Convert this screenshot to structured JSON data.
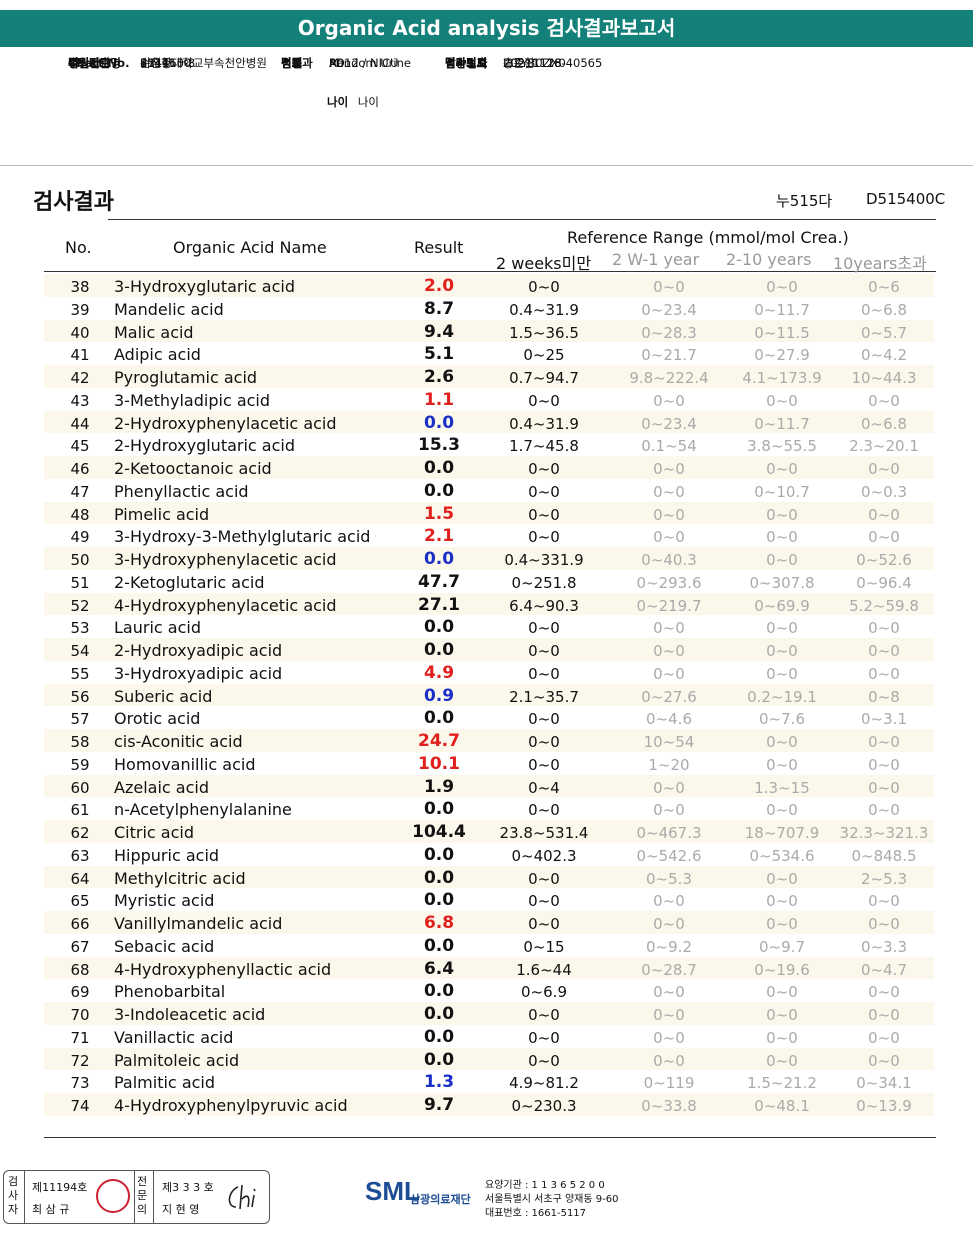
{
  "header": {
    "title": "Organic Acid analysis 검사결과보고서"
  },
  "info": {
    "col1": [
      {
        "k": "의뢰기관명",
        "v": "순천향대학교부속천안병원"
      },
      {
        "k": "병원코드",
        "v": "85416"
      },
      {
        "k": "수진자",
        "v": "이우주"
      },
      {
        "k": "Chart No.",
        "v": "1714550"
      },
      {
        "k": "주민번호",
        "v": "211110-3"
      }
    ],
    "col2": [
      {
        "k": "병동",
        "v": "A012 / NICU"
      },
      {
        "k": "진료과",
        "v": "PD"
      },
      {
        "k": "성별",
        "v": "M"
      },
      {
        "k": "검체",
        "v": "Random Urine"
      }
    ],
    "age_label": "나이",
    "age_value": "나이",
    "col3": [
      {
        "k": "담당의사",
        "v": "송준환"
      },
      {
        "k": "임상정보",
        "v": "I32Y30ZX0"
      },
      {
        "k": "접수번호",
        "v": "20211118-40565"
      },
      {
        "k": "검사의뢰",
        "v": "20211118"
      },
      {
        "k": "결과보고",
        "v": "20211126"
      }
    ]
  },
  "result_section": {
    "title": "검사결과",
    "code1": "누515다",
    "code2": "D515400C"
  },
  "table": {
    "headers": {
      "no": "No.",
      "name": "Organic Acid Name",
      "result": "Result",
      "ref": "Reference Range (mmol/mol Crea.)",
      "ref_cols": [
        "2 weeks미만",
        "2 W-1 year",
        "2-10 years",
        "10years초과"
      ]
    },
    "colors": {
      "high": "#e0201c",
      "low": "#1a2fc8",
      "normal": "#111111"
    },
    "rows": [
      {
        "no": "38",
        "name": "3-Hydroxyglutaric acid",
        "result": "2.0",
        "flag": "high",
        "r1": "0~0",
        "r2": "0~0",
        "r3": "0~0",
        "r4": "0~6"
      },
      {
        "no": "39",
        "name": "Mandelic acid",
        "result": "8.7",
        "flag": "normal",
        "r1": "0.4~31.9",
        "r2": "0~23.4",
        "r3": "0~11.7",
        "r4": "0~6.8"
      },
      {
        "no": "40",
        "name": "Malic acid",
        "result": "9.4",
        "flag": "normal",
        "r1": "1.5~36.5",
        "r2": "0~28.3",
        "r3": "0~11.5",
        "r4": "0~5.7"
      },
      {
        "no": "41",
        "name": "Adipic acid",
        "result": "5.1",
        "flag": "normal",
        "r1": "0~25",
        "r2": "0~21.7",
        "r3": "0~27.9",
        "r4": "0~4.2"
      },
      {
        "no": "42",
        "name": "Pyroglutamic acid",
        "result": "2.6",
        "flag": "normal",
        "r1": "0.7~94.7",
        "r2": "9.8~222.4",
        "r3": "4.1~173.9",
        "r4": "10~44.3"
      },
      {
        "no": "43",
        "name": "3-Methyladipic acid",
        "result": "1.1",
        "flag": "high",
        "r1": "0~0",
        "r2": "0~0",
        "r3": "0~0",
        "r4": "0~0"
      },
      {
        "no": "44",
        "name": "2-Hydroxyphenylacetic acid",
        "result": "0.0",
        "flag": "low",
        "r1": "0.4~31.9",
        "r2": "0~23.4",
        "r3": "0~11.7",
        "r4": "0~6.8"
      },
      {
        "no": "45",
        "name": "2-Hydroxyglutaric acid",
        "result": "15.3",
        "flag": "normal",
        "r1": "1.7~45.8",
        "r2": "0.1~54",
        "r3": "3.8~55.5",
        "r4": "2.3~20.1"
      },
      {
        "no": "46",
        "name": "2-Ketooctanoic acid",
        "result": "0.0",
        "flag": "normal",
        "r1": "0~0",
        "r2": "0~0",
        "r3": "0~0",
        "r4": "0~0"
      },
      {
        "no": "47",
        "name": "Phenyllactic acid",
        "result": "0.0",
        "flag": "normal",
        "r1": "0~0",
        "r2": "0~0",
        "r3": "0~10.7",
        "r4": "0~0.3"
      },
      {
        "no": "48",
        "name": "Pimelic acid",
        "result": "1.5",
        "flag": "high",
        "r1": "0~0",
        "r2": "0~0",
        "r3": "0~0",
        "r4": "0~0"
      },
      {
        "no": "49",
        "name": "3-Hydroxy-3-Methylglutaric acid",
        "result": "2.1",
        "flag": "high",
        "r1": "0~0",
        "r2": "0~0",
        "r3": "0~0",
        "r4": "0~0"
      },
      {
        "no": "50",
        "name": "3-Hydroxyphenylacetic acid",
        "result": "0.0",
        "flag": "low",
        "r1": "0.4~331.9",
        "r2": "0~40.3",
        "r3": "0~0",
        "r4": "0~52.6"
      },
      {
        "no": "51",
        "name": "2-Ketoglutaric acid",
        "result": "47.7",
        "flag": "normal",
        "r1": "0~251.8",
        "r2": "0~293.6",
        "r3": "0~307.8",
        "r4": "0~96.4"
      },
      {
        "no": "52",
        "name": "4-Hydroxyphenylacetic acid",
        "result": "27.1",
        "flag": "normal",
        "r1": "6.4~90.3",
        "r2": "0~219.7",
        "r3": "0~69.9",
        "r4": "5.2~59.8"
      },
      {
        "no": "53",
        "name": "Lauric acid",
        "result": "0.0",
        "flag": "normal",
        "r1": "0~0",
        "r2": "0~0",
        "r3": "0~0",
        "r4": "0~0"
      },
      {
        "no": "54",
        "name": "2-Hydroxyadipic acid",
        "result": "0.0",
        "flag": "normal",
        "r1": "0~0",
        "r2": "0~0",
        "r3": "0~0",
        "r4": "0~0"
      },
      {
        "no": "55",
        "name": "3-Hydroxyadipic acid",
        "result": "4.9",
        "flag": "high",
        "r1": "0~0",
        "r2": "0~0",
        "r3": "0~0",
        "r4": "0~0"
      },
      {
        "no": "56",
        "name": "Suberic acid",
        "result": "0.9",
        "flag": "low",
        "r1": "2.1~35.7",
        "r2": "0~27.6",
        "r3": "0.2~19.1",
        "r4": "0~8"
      },
      {
        "no": "57",
        "name": "Orotic acid",
        "result": "0.0",
        "flag": "normal",
        "r1": "0~0",
        "r2": "0~4.6",
        "r3": "0~7.6",
        "r4": "0~3.1"
      },
      {
        "no": "58",
        "name": "cis-Aconitic acid",
        "result": "24.7",
        "flag": "high",
        "r1": "0~0",
        "r2": "10~54",
        "r3": "0~0",
        "r4": "0~0"
      },
      {
        "no": "59",
        "name": "Homovanillic acid",
        "result": "10.1",
        "flag": "high",
        "r1": "0~0",
        "r2": "1~20",
        "r3": "0~0",
        "r4": "0~0"
      },
      {
        "no": "60",
        "name": "Azelaic acid",
        "result": "1.9",
        "flag": "normal",
        "r1": "0~4",
        "r2": "0~0",
        "r3": "1.3~15",
        "r4": "0~0"
      },
      {
        "no": "61",
        "name": "n-Acetylphenylalanine",
        "result": "0.0",
        "flag": "normal",
        "r1": "0~0",
        "r2": "0~0",
        "r3": "0~0",
        "r4": "0~0"
      },
      {
        "no": "62",
        "name": "Citric acid",
        "result": "104.4",
        "flag": "normal",
        "r1": "23.8~531.4",
        "r2": "0~467.3",
        "r3": "18~707.9",
        "r4": "32.3~321.3"
      },
      {
        "no": "63",
        "name": "Hippuric acid",
        "result": "0.0",
        "flag": "normal",
        "r1": "0~402.3",
        "r2": "0~542.6",
        "r3": "0~534.6",
        "r4": "0~848.5"
      },
      {
        "no": "64",
        "name": "Methylcitric acid",
        "result": "0.0",
        "flag": "normal",
        "r1": "0~0",
        "r2": "0~5.3",
        "r3": "0~0",
        "r4": "2~5.3"
      },
      {
        "no": "65",
        "name": "Myristic acid",
        "result": "0.0",
        "flag": "normal",
        "r1": "0~0",
        "r2": "0~0",
        "r3": "0~0",
        "r4": "0~0"
      },
      {
        "no": "66",
        "name": "Vanillylmandelic acid",
        "result": "6.8",
        "flag": "high",
        "r1": "0~0",
        "r2": "0~0",
        "r3": "0~0",
        "r4": "0~0"
      },
      {
        "no": "67",
        "name": "Sebacic acid",
        "result": "0.0",
        "flag": "normal",
        "r1": "0~15",
        "r2": "0~9.2",
        "r3": "0~9.7",
        "r4": "0~3.3"
      },
      {
        "no": "68",
        "name": "4-Hydroxyphenyllactic acid",
        "result": "6.4",
        "flag": "normal",
        "r1": "1.6~44",
        "r2": "0~28.7",
        "r3": "0~19.6",
        "r4": "0~4.7"
      },
      {
        "no": "69",
        "name": "Phenobarbital",
        "result": "0.0",
        "flag": "normal",
        "r1": "0~6.9",
        "r2": "0~0",
        "r3": "0~0",
        "r4": "0~0"
      },
      {
        "no": "70",
        "name": "3-Indoleacetic acid",
        "result": "0.0",
        "flag": "normal",
        "r1": "0~0",
        "r2": "0~0",
        "r3": "0~0",
        "r4": "0~0"
      },
      {
        "no": "71",
        "name": "Vanillactic acid",
        "result": "0.0",
        "flag": "normal",
        "r1": "0~0",
        "r2": "0~0",
        "r3": "0~0",
        "r4": "0~0"
      },
      {
        "no": "72",
        "name": "Palmitoleic acid",
        "result": "0.0",
        "flag": "normal",
        "r1": "0~0",
        "r2": "0~0",
        "r3": "0~0",
        "r4": "0~0"
      },
      {
        "no": "73",
        "name": "Palmitic acid",
        "result": "1.3",
        "flag": "low",
        "r1": "4.9~81.2",
        "r2": "0~119",
        "r3": "1.5~21.2",
        "r4": "0~34.1"
      },
      {
        "no": "74",
        "name": "4-Hydroxyphenylpyruvic acid",
        "result": "9.7",
        "flag": "normal",
        "r1": "0~230.3",
        "r2": "0~33.8",
        "r3": "0~48.1",
        "r4": "0~13.9"
      }
    ]
  },
  "footer": {
    "examiner_label": "검사자",
    "examiner_no": "제11194호",
    "examiner_name": "최 삼 규",
    "specialist_label": "전문의",
    "specialist_no": "제3 3 3 호",
    "specialist_name": "지 현 영",
    "logo": "SML",
    "org": "삼광의료재단",
    "addr": [
      "요양기관 : 1 1 3 6 5 2 0 0",
      "서울특별시 서초구 양재동 9-60",
      "대표번호 : 1661-5117"
    ]
  }
}
